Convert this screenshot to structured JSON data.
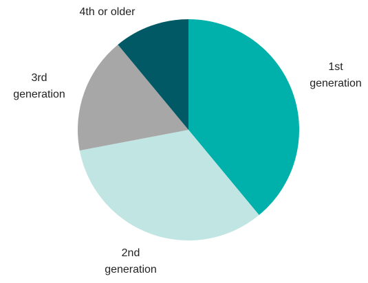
{
  "chart_data": {
    "type": "pie",
    "categories": [
      "1st generation",
      "2nd generation",
      "3rd generation",
      "4th or older"
    ],
    "values": [
      39,
      33,
      17,
      11
    ],
    "colors": [
      "#00b0aa",
      "#c0e5e3",
      "#a7a7a7",
      "#005964"
    ],
    "labels": [
      [
        "1st",
        "generation"
      ],
      [
        "2nd",
        "generation"
      ],
      [
        "3rd",
        "generation"
      ],
      [
        "4th or older"
      ]
    ],
    "start_angle_deg": 0,
    "direction": "clockwise",
    "legend": "none"
  }
}
